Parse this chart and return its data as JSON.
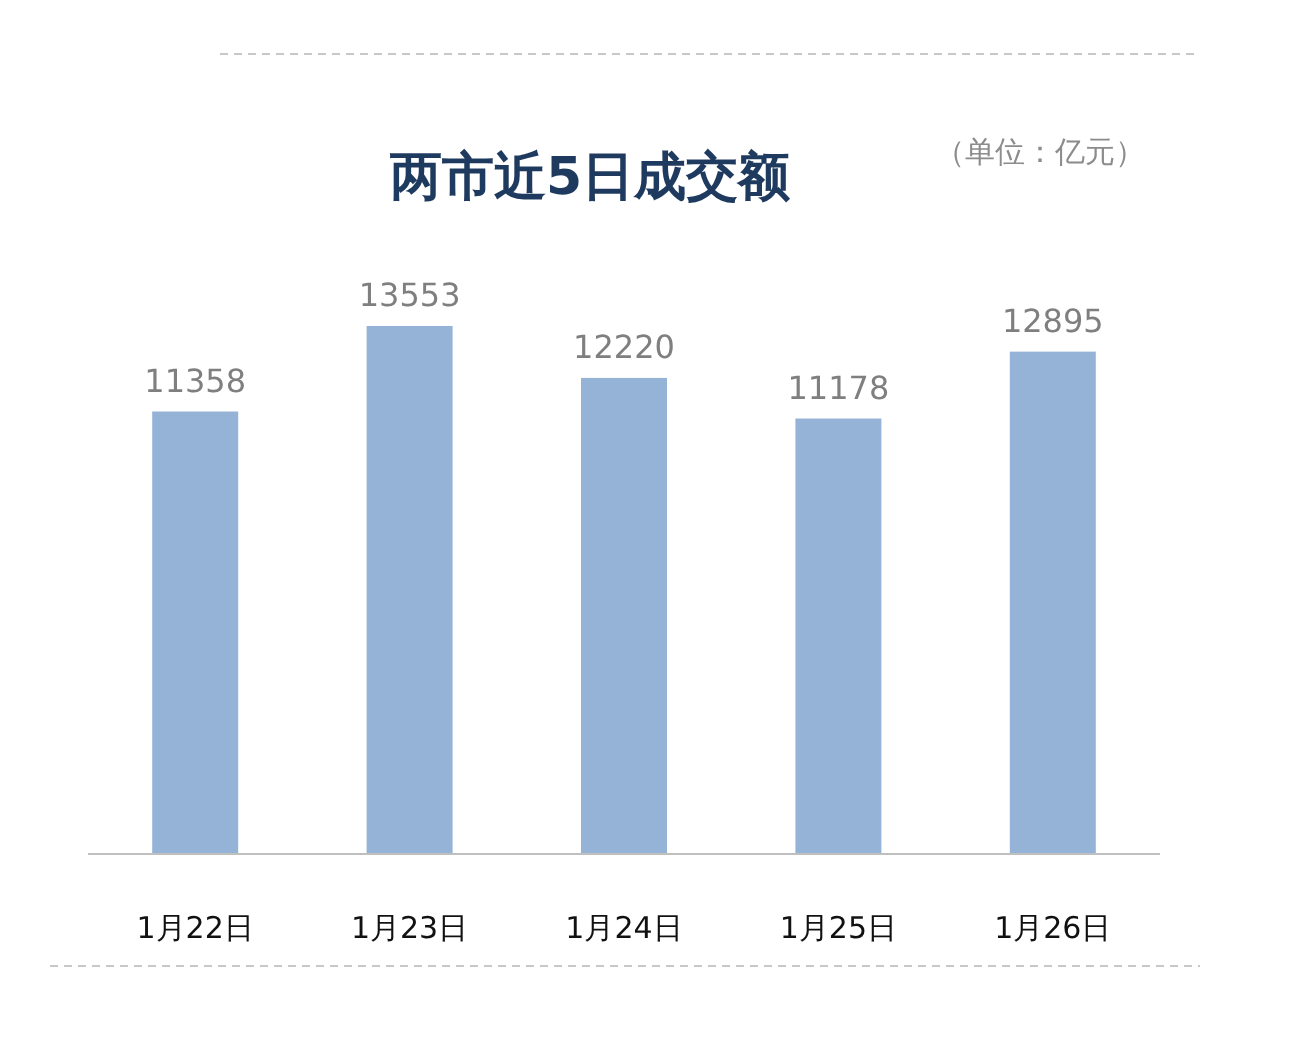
{
  "chart_data": {
    "type": "bar",
    "title": "两市近5日成交额",
    "subtitle": "（单位：亿元）",
    "categories": [
      "1月22日",
      "1月23日",
      "1月24日",
      "1月25日",
      "1月26日"
    ],
    "values": [
      11358,
      13553,
      12220,
      11178,
      12895
    ],
    "color": "#95b3d7",
    "data_labels": true
  }
}
